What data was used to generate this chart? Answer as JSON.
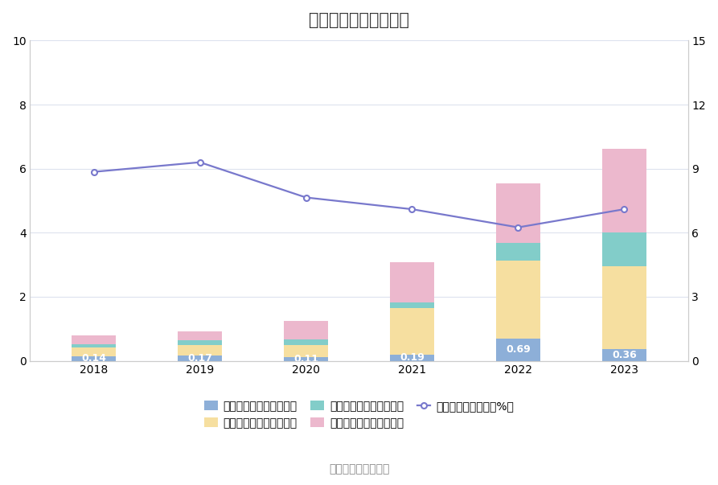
{
  "title": "历年期间费用变化情况",
  "years": [
    2018,
    2019,
    2020,
    2021,
    2022,
    2023
  ],
  "sales_expense": [
    0.14,
    0.17,
    0.11,
    0.19,
    0.69,
    0.36
  ],
  "mgmt_expense": [
    0.28,
    0.32,
    0.38,
    1.45,
    2.45,
    2.6
  ],
  "finance_expense": [
    0.1,
    0.14,
    0.18,
    0.18,
    0.55,
    1.05
  ],
  "rd_expense": [
    0.28,
    0.28,
    0.58,
    1.25,
    1.85,
    2.6
  ],
  "period_rate": [
    8.85,
    9.3,
    7.65,
    7.1,
    6.25,
    7.1
  ],
  "bar_colors": {
    "sales": "#8dafd8",
    "mgmt": "#f6dfa0",
    "finance": "#82cdc9",
    "rd": "#ecb8cd"
  },
  "line_color": "#7878cc",
  "left_ylim": [
    0,
    10
  ],
  "right_ylim": [
    0,
    15
  ],
  "left_yticks": [
    0,
    2,
    4,
    6,
    8,
    10
  ],
  "right_yticks": [
    0,
    3,
    6,
    9,
    12,
    15
  ],
  "annotation_color": "white",
  "source_text": "数据来源：恒生聚源",
  "legend_items": [
    {
      "label": "左轴：销售费用（亿元）",
      "color": "#8dafd8",
      "type": "bar"
    },
    {
      "label": "左轴：管理费用（亿元）",
      "color": "#f6dfa0",
      "type": "bar"
    },
    {
      "label": "左轴：财务费用（亿元）",
      "color": "#82cdc9",
      "type": "bar"
    },
    {
      "label": "左轴：研发费用（亿元）",
      "color": "#ecb8cd",
      "type": "bar"
    },
    {
      "label": "右轴：期间费用率（%）",
      "color": "#7878cc",
      "type": "line"
    }
  ],
  "background_color": "#ffffff",
  "grid_color": "#dde2ee",
  "font_size_title": 15,
  "font_size_tick": 10,
  "font_size_annotation": 9,
  "font_size_source": 10,
  "font_size_legend": 10
}
